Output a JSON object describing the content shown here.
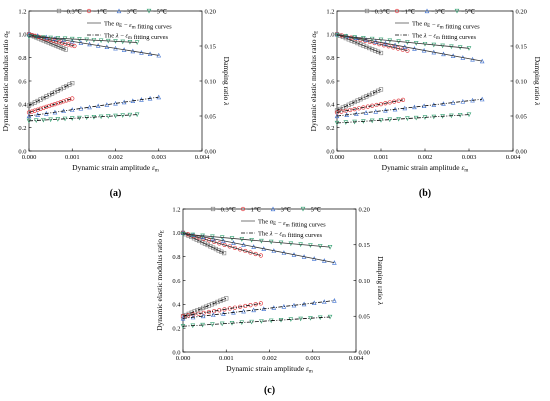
{
  "figure": {
    "panel_labels": [
      "(a)",
      "(b)",
      "(c)"
    ],
    "legend": {
      "temps": [
        "−0.3℃",
        "−1℃",
        "−3℃",
        "−5℃"
      ],
      "line1": "The αE − εm fitting curves",
      "line2": "The λ − εm fitting curves"
    },
    "colors": {
      "−0.3℃": "#7a7a7a",
      "−1℃": "#e0282e",
      "−3℃": "#3b6fd0",
      "−5℃": "#2e9e6e",
      "fit_line": "#7a7a7a"
    },
    "markers": {
      "−0.3℃": "square",
      "−1℃": "circle",
      "−3℃": "triangle-up",
      "−5℃": "triangle-down"
    }
  },
  "chart_data": [
    {
      "type": "scatter",
      "panel": "(a)",
      "xlabel": "Dynamic strain amplitude εm",
      "ylabel_left": "Dynamic elastic modulus ratio αE",
      "ylabel_right": "Damping ratio λ",
      "xlim": [
        0,
        0.004
      ],
      "xticks": [
        "0.000",
        "0.001",
        "0.002",
        "0.003",
        "0.004"
      ],
      "ylim_left": [
        0,
        1.2
      ],
      "yticks_left": [
        "0.0",
        "0.2",
        "0.4",
        "0.6",
        "0.8",
        "1.0",
        "1.2"
      ],
      "ylim_right": [
        0,
        0.2
      ],
      "yticks_right": [
        "0.00",
        "0.05",
        "0.10",
        "0.15",
        "0.20"
      ],
      "series": [
        {
          "name": "−0.3℃",
          "alpha_E": {
            "x_range": [
              0,
              0.00085
            ],
            "y_range": [
              1.0,
              0.87
            ]
          },
          "lambda": {
            "x_range": [
              0,
              0.001
            ],
            "y_range": [
              0.065,
              0.097
            ]
          }
        },
        {
          "name": "−1℃",
          "alpha_E": {
            "x_range": [
              0,
              0.00105
            ],
            "y_range": [
              1.0,
              0.9
            ]
          },
          "lambda": {
            "x_range": [
              0,
              0.001
            ],
            "y_range": [
              0.055,
              0.075
            ]
          }
        },
        {
          "name": "−3℃",
          "alpha_E": {
            "x_range": [
              0,
              0.003
            ],
            "y_range": [
              1.0,
              0.82
            ]
          },
          "lambda": {
            "x_range": [
              0,
              0.003
            ],
            "y_range": [
              0.05,
              0.077
            ]
          }
        },
        {
          "name": "−5℃",
          "alpha_E": {
            "x_range": [
              0,
              0.0025
            ],
            "y_range": [
              0.98,
              0.93
            ]
          },
          "lambda": {
            "x_range": [
              0,
              0.0025
            ],
            "y_range": [
              0.043,
              0.052
            ]
          }
        }
      ]
    },
    {
      "type": "scatter",
      "panel": "(b)",
      "xlabel": "Dynamic strain amplitude εm",
      "ylabel_left": "Dynamic elastic modulus ratio αE",
      "ylabel_right": "Damping ratio λ",
      "xlim": [
        0,
        0.004
      ],
      "xticks": [
        "0.000",
        "0.001",
        "0.002",
        "0.003",
        "0.004"
      ],
      "ylim_left": [
        0,
        1.2
      ],
      "yticks_left": [
        "0.0",
        "0.2",
        "0.4",
        "0.6",
        "0.8",
        "1.0",
        "1.2"
      ],
      "ylim_right": [
        0,
        0.2
      ],
      "yticks_right": [
        "0.00",
        "0.05",
        "0.10",
        "0.15",
        "0.20"
      ],
      "series": [
        {
          "name": "−0.3℃",
          "alpha_E": {
            "x_range": [
              0,
              0.001
            ],
            "y_range": [
              1.0,
              0.84
            ]
          },
          "lambda": {
            "x_range": [
              0,
              0.001
            ],
            "y_range": [
              0.058,
              0.088
            ]
          }
        },
        {
          "name": "−1℃",
          "alpha_E": {
            "x_range": [
              0,
              0.0016
            ],
            "y_range": [
              1.0,
              0.86
            ]
          },
          "lambda": {
            "x_range": [
              0,
              0.0015
            ],
            "y_range": [
              0.055,
              0.073
            ]
          }
        },
        {
          "name": "−3℃",
          "alpha_E": {
            "x_range": [
              0,
              0.0033
            ],
            "y_range": [
              1.0,
              0.77
            ]
          },
          "lambda": {
            "x_range": [
              0,
              0.0033
            ],
            "y_range": [
              0.05,
              0.074
            ]
          }
        },
        {
          "name": "−5℃",
          "alpha_E": {
            "x_range": [
              0,
              0.003
            ],
            "y_range": [
              0.99,
              0.88
            ]
          },
          "lambda": {
            "x_range": [
              0,
              0.003
            ],
            "y_range": [
              0.04,
              0.052
            ]
          }
        }
      ]
    },
    {
      "type": "scatter",
      "panel": "(c)",
      "xlabel": "Dynamic strain amplitude εm",
      "ylabel_left": "Dynamic elastic modulus ratio αE",
      "ylabel_right": "Damping ratio λ",
      "xlim": [
        0,
        0.004
      ],
      "xticks": [
        "0.000",
        "0.001",
        "0.002",
        "0.003",
        "0.004"
      ],
      "ylim_left": [
        0,
        1.2
      ],
      "yticks_left": [
        "0.0",
        "0.2",
        "0.4",
        "0.6",
        "0.8",
        "1.0",
        "1.2"
      ],
      "ylim_right": [
        0,
        0.2
      ],
      "yticks_right": [
        "0.00",
        "0.05",
        "0.10",
        "0.15",
        "0.20"
      ],
      "series": [
        {
          "name": "−0.3℃",
          "alpha_E": {
            "x_range": [
              0,
              0.00095
            ],
            "y_range": [
              1.0,
              0.83
            ]
          },
          "lambda": {
            "x_range": [
              0,
              0.001
            ],
            "y_range": [
              0.05,
              0.075
            ]
          }
        },
        {
          "name": "−1℃",
          "alpha_E": {
            "x_range": [
              0,
              0.0018
            ],
            "y_range": [
              1.0,
              0.81
            ]
          },
          "lambda": {
            "x_range": [
              0,
              0.0018
            ],
            "y_range": [
              0.05,
              0.068
            ]
          }
        },
        {
          "name": "−3℃",
          "alpha_E": {
            "x_range": [
              0,
              0.0035
            ],
            "y_range": [
              1.0,
              0.75
            ]
          },
          "lambda": {
            "x_range": [
              0,
              0.0035
            ],
            "y_range": [
              0.047,
              0.072
            ]
          }
        },
        {
          "name": "−5℃",
          "alpha_E": {
            "x_range": [
              0,
              0.0034
            ],
            "y_range": [
              0.99,
              0.88
            ]
          },
          "lambda": {
            "x_range": [
              0,
              0.0034
            ],
            "y_range": [
              0.036,
              0.049
            ]
          }
        }
      ]
    }
  ]
}
